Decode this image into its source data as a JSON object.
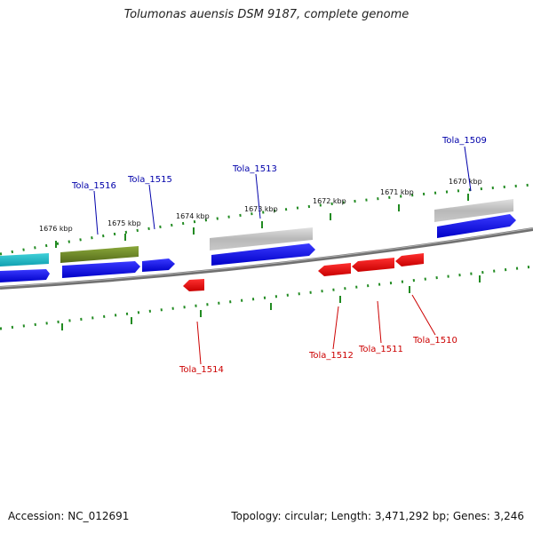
{
  "title": "Tolumonas auensis DSM 9187, complete genome",
  "accession": "Accession: NC_012691",
  "stats": "Topology: circular; Length: 3,471,292 bp; Genes: 3,246",
  "ticks": [
    "1676 kbp",
    "1675 kbp",
    "1674 kbp",
    "1673 kbp",
    "1672 kbp",
    "1671 kbp",
    "1670 kbp"
  ],
  "genes": {
    "g1516": "Tola_1516",
    "g1515": "Tola_1515",
    "g1513": "Tola_1513",
    "g1509": "Tola_1509",
    "g1514": "Tola_1514",
    "g1512": "Tola_1512",
    "g1511": "Tola_1511",
    "g1510": "Tola_1510"
  },
  "colors": {
    "forward_gene": "#0000ee",
    "reverse_gene": "#ee0000",
    "pseudo": "#b0b0b0",
    "olive": "#6b8e23",
    "cyan": "#20b2c0",
    "backbone": "#808080",
    "tick": "#228b22",
    "forward_label": "#0000aa",
    "reverse_label": "#cc0000"
  }
}
